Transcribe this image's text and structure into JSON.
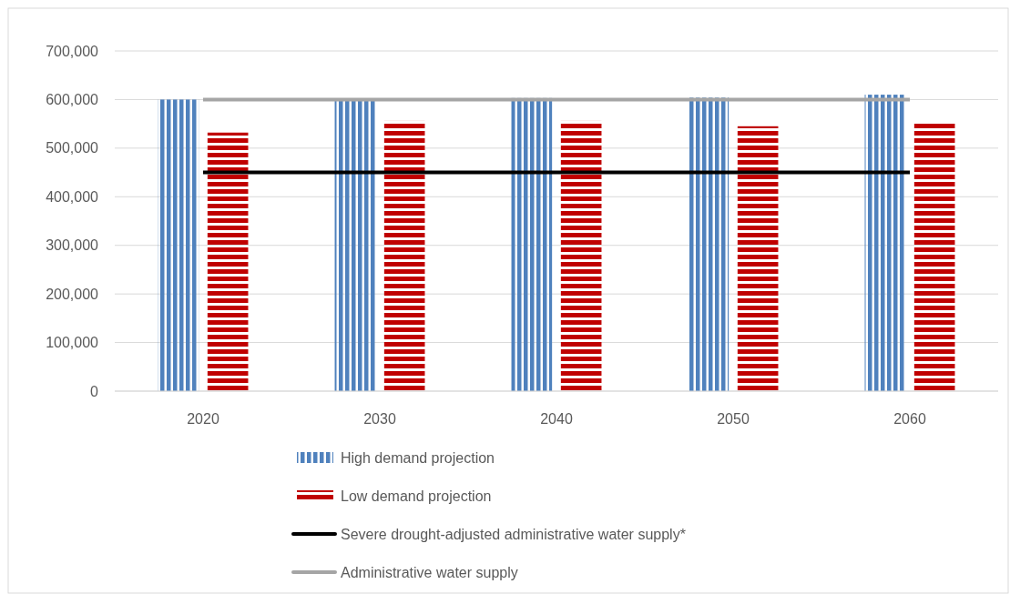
{
  "chart_data": {
    "type": "bar",
    "categories": [
      "2020",
      "2030",
      "2040",
      "2050",
      "2060"
    ],
    "series": [
      {
        "name": "High demand projection",
        "color": "#4f81bd",
        "values": [
          600000,
          598000,
          603000,
          604000,
          610000
        ]
      },
      {
        "name": "Low demand projection",
        "color": "#c00000",
        "values": [
          532000,
          556000,
          556000,
          545000,
          554000
        ]
      },
      {
        "name": "Severe drought-adjusted administrative water supply*",
        "type": "line",
        "color": "#000000",
        "values": [
          450000,
          450000,
          450000,
          450000,
          450000
        ]
      },
      {
        "name": "Administrative water supply",
        "type": "line",
        "color": "#a5a5a5",
        "values": [
          600000,
          600000,
          600000,
          600000,
          600000
        ]
      }
    ],
    "ylim": [
      0,
      700000
    ],
    "yticks": [
      {
        "value": 0,
        "label": "0"
      },
      {
        "value": 100000,
        "label": "100,000"
      },
      {
        "value": 200000,
        "label": "200,000"
      },
      {
        "value": 300000,
        "label": "300,000"
      },
      {
        "value": 400000,
        "label": "400,000"
      },
      {
        "value": 500000,
        "label": "500,000"
      },
      {
        "value": 600000,
        "label": "600,000"
      },
      {
        "value": 700000,
        "label": "700,000"
      }
    ],
    "grid": "y",
    "legend": "bottom",
    "marker": "none"
  }
}
